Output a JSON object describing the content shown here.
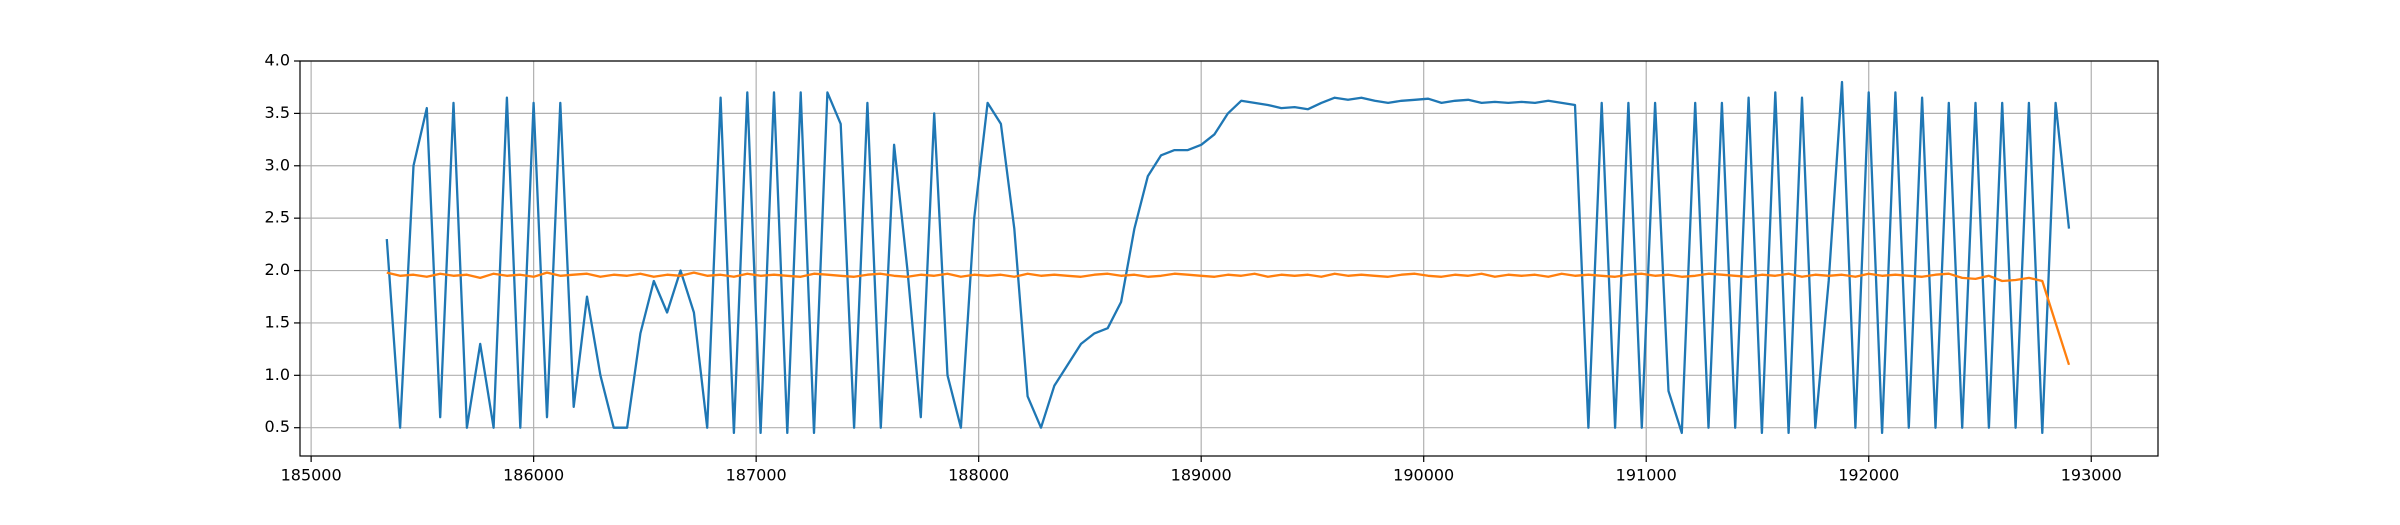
{
  "chart_data": {
    "type": "line",
    "x": [
      185340,
      185400,
      185460,
      185520,
      185580,
      185640,
      185700,
      185760,
      185820,
      185880,
      185940,
      186000,
      186060,
      186120,
      186180,
      186240,
      186300,
      186360,
      186420,
      186480,
      186540,
      186600,
      186660,
      186720,
      186780,
      186840,
      186900,
      186960,
      187020,
      187080,
      187140,
      187200,
      187260,
      187320,
      187380,
      187440,
      187500,
      187560,
      187620,
      187680,
      187740,
      187800,
      187860,
      187920,
      187980,
      188040,
      188100,
      188160,
      188220,
      188280,
      188340,
      188400,
      188460,
      188520,
      188580,
      188640,
      188700,
      188760,
      188820,
      188880,
      188940,
      189000,
      189060,
      189120,
      189180,
      189240,
      189300,
      189360,
      189420,
      189480,
      189540,
      189600,
      189660,
      189720,
      189780,
      189840,
      189900,
      189960,
      190020,
      190080,
      190140,
      190200,
      190260,
      190320,
      190380,
      190440,
      190500,
      190560,
      190620,
      190680,
      190740,
      190800,
      190860,
      190920,
      190980,
      191040,
      191100,
      191160,
      191220,
      191280,
      191340,
      191400,
      191460,
      191520,
      191580,
      191640,
      191700,
      191760,
      191820,
      191880,
      191940,
      192000,
      192060,
      192120,
      192180,
      192240,
      192300,
      192360,
      192420,
      192480,
      192540,
      192600,
      192660,
      192720,
      192780,
      192840,
      192900
    ],
    "series": [
      {
        "color": "#1f77b4",
        "values": [
          2.3,
          0.5,
          3.0,
          3.55,
          0.6,
          3.6,
          0.5,
          1.3,
          0.5,
          3.65,
          0.5,
          3.6,
          0.6,
          3.6,
          0.7,
          1.75,
          1.0,
          0.5,
          0.5,
          1.4,
          1.9,
          1.6,
          2.0,
          1.6,
          0.5,
          3.65,
          0.45,
          3.7,
          0.45,
          3.7,
          0.45,
          3.7,
          0.45,
          3.7,
          3.4,
          0.5,
          3.6,
          0.5,
          3.2,
          2.0,
          0.6,
          3.5,
          1.0,
          0.5,
          2.5,
          3.6,
          3.4,
          2.4,
          0.8,
          0.5,
          0.9,
          1.1,
          1.3,
          1.4,
          1.45,
          1.7,
          2.4,
          2.9,
          3.1,
          3.15,
          3.15,
          3.2,
          3.3,
          3.5,
          3.62,
          3.6,
          3.58,
          3.55,
          3.56,
          3.54,
          3.6,
          3.65,
          3.63,
          3.65,
          3.62,
          3.6,
          3.62,
          3.63,
          3.64,
          3.6,
          3.62,
          3.63,
          3.6,
          3.61,
          3.6,
          3.61,
          3.6,
          3.62,
          3.6,
          3.58,
          0.5,
          3.6,
          0.5,
          3.6,
          0.5,
          3.6,
          0.85,
          0.45,
          3.6,
          0.5,
          3.6,
          0.5,
          3.65,
          0.45,
          3.7,
          0.45,
          3.65,
          0.5,
          1.9,
          3.8,
          0.5,
          3.7,
          0.45,
          3.7,
          0.5,
          3.65,
          0.5,
          3.6,
          0.5,
          3.6,
          0.5,
          3.6,
          0.5,
          3.6,
          0.45,
          3.6,
          2.4
        ]
      },
      {
        "color": "#ff7f0e",
        "values": [
          1.98,
          1.95,
          1.96,
          1.94,
          1.97,
          1.95,
          1.96,
          1.93,
          1.97,
          1.95,
          1.96,
          1.94,
          1.98,
          1.95,
          1.96,
          1.97,
          1.94,
          1.96,
          1.95,
          1.97,
          1.94,
          1.96,
          1.95,
          1.98,
          1.95,
          1.96,
          1.94,
          1.97,
          1.95,
          1.96,
          1.95,
          1.94,
          1.97,
          1.96,
          1.95,
          1.94,
          1.96,
          1.97,
          1.95,
          1.94,
          1.96,
          1.95,
          1.97,
          1.94,
          1.96,
          1.95,
          1.96,
          1.94,
          1.97,
          1.95,
          1.96,
          1.95,
          1.94,
          1.96,
          1.97,
          1.95,
          1.96,
          1.94,
          1.95,
          1.97,
          1.96,
          1.95,
          1.94,
          1.96,
          1.95,
          1.97,
          1.94,
          1.96,
          1.95,
          1.96,
          1.94,
          1.97,
          1.95,
          1.96,
          1.95,
          1.94,
          1.96,
          1.97,
          1.95,
          1.94,
          1.96,
          1.95,
          1.97,
          1.94,
          1.96,
          1.95,
          1.96,
          1.94,
          1.97,
          1.95,
          1.96,
          1.95,
          1.94,
          1.96,
          1.97,
          1.95,
          1.96,
          1.94,
          1.95,
          1.97,
          1.96,
          1.95,
          1.94,
          1.96,
          1.95,
          1.97,
          1.94,
          1.96,
          1.95,
          1.96,
          1.94,
          1.97,
          1.95,
          1.96,
          1.95,
          1.94,
          1.96,
          1.97,
          1.93,
          1.92,
          1.95,
          1.9,
          1.91,
          1.93,
          1.9,
          1.5,
          1.1
        ]
      }
    ],
    "xlim": [
      184950,
      193300
    ],
    "ylim": [
      0.23,
      4.0
    ],
    "xticks": [
      185000,
      186000,
      187000,
      188000,
      189000,
      190000,
      191000,
      192000,
      193000
    ],
    "yticks": [
      0.5,
      {
        "value": 1,
        "label": "1.0"
      },
      1.5,
      {
        "value": 2,
        "label": "2.0"
      },
      2.5,
      {
        "value": 3,
        "label": "3.0"
      },
      3.5,
      {
        "value": 4,
        "label": "4.0"
      }
    ],
    "grid": true
  }
}
